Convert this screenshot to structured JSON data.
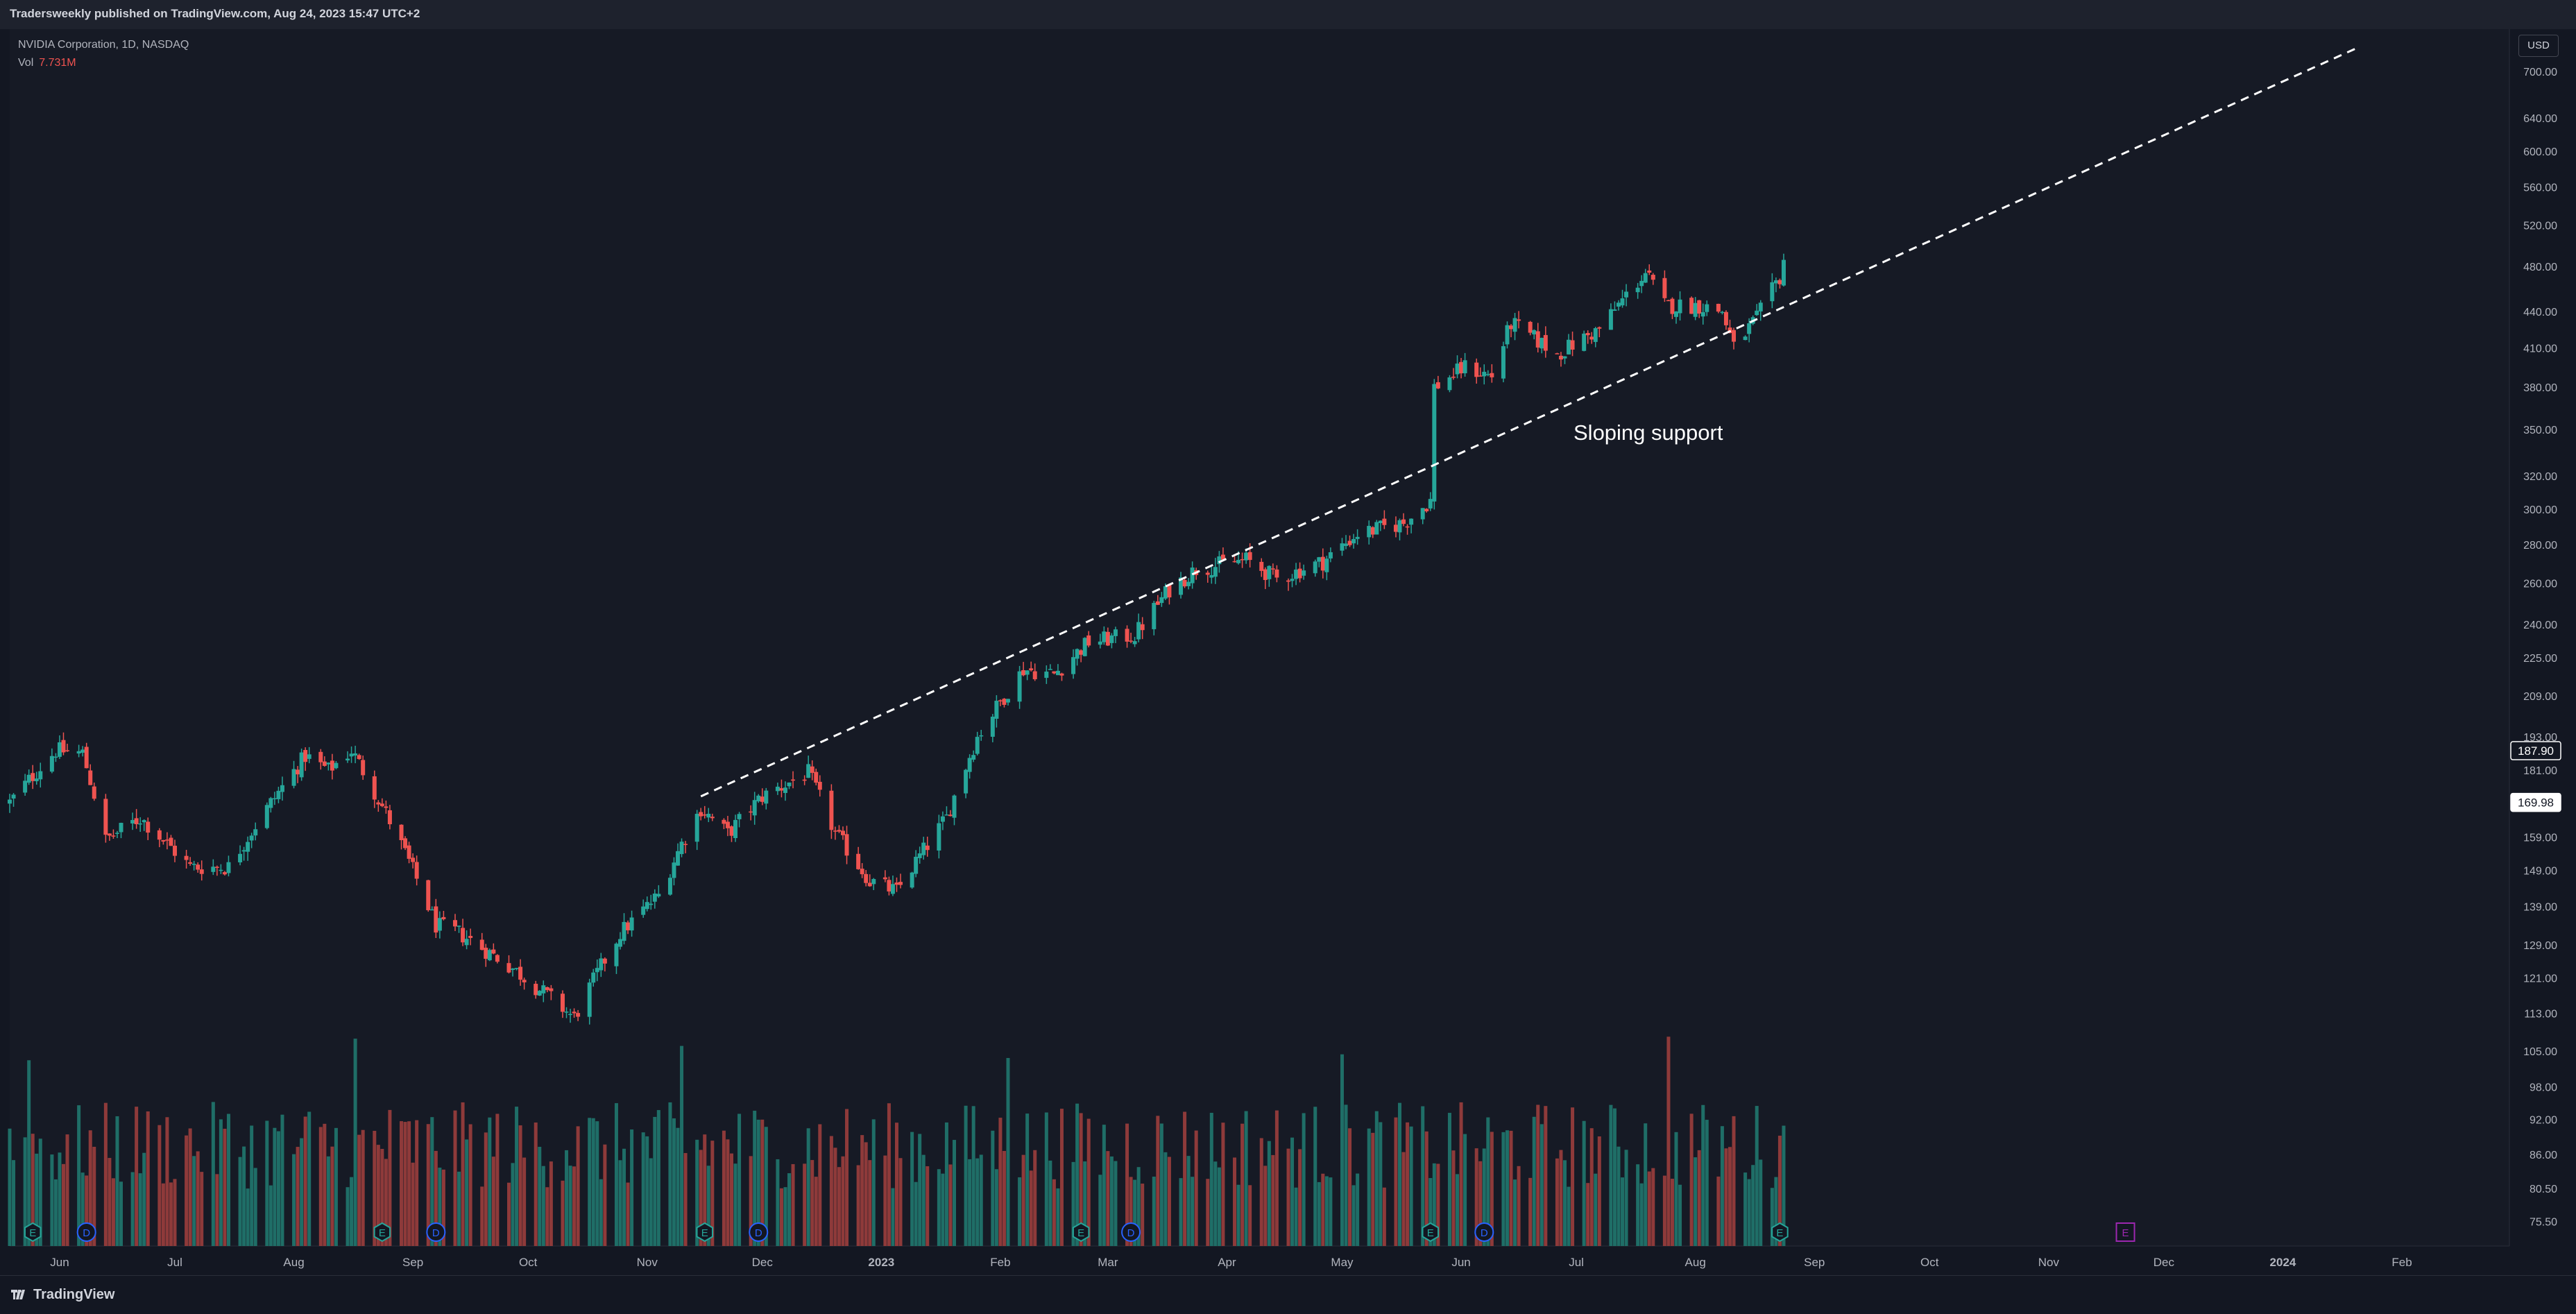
{
  "header": {
    "publish_text": "Tradersweekly published on TradingView.com, Aug 24, 2023 15:47 UTC+2"
  },
  "legend": {
    "symbol": "NVIDIA Corporation, 1D, NASDAQ",
    "vol_label": "Vol",
    "vol_value": "7.731M"
  },
  "currency_button": "USD",
  "footer": {
    "brand": "TradingView"
  },
  "colors": {
    "up": "#26a69a",
    "down": "#ef5350",
    "up_vol": "#1f6e67",
    "down_vol": "#8e3a3a",
    "background": "#131722",
    "line": "#ffffff",
    "event_e": "#26a69a",
    "event_d": "#2962ff",
    "event_future": "#9c27b0"
  },
  "chart_data": {
    "type": "candlestick",
    "title": "NVIDIA Corporation, 1D, NASDAQ",
    "y_scale": "log",
    "ylim": [
      72,
      760
    ],
    "x_range": [
      "2022-05-19",
      "2024-02-29"
    ],
    "x_ticks": [
      {
        "date": "2022-06-01",
        "label": "Jun"
      },
      {
        "date": "2022-07-01",
        "label": "Jul"
      },
      {
        "date": "2022-08-01",
        "label": "Aug"
      },
      {
        "date": "2022-09-01",
        "label": "Sep"
      },
      {
        "date": "2022-10-01",
        "label": "Oct"
      },
      {
        "date": "2022-11-01",
        "label": "Nov"
      },
      {
        "date": "2022-12-01",
        "label": "Dec"
      },
      {
        "date": "2023-01-01",
        "label": "2023"
      },
      {
        "date": "2023-02-01",
        "label": "Feb"
      },
      {
        "date": "2023-03-01",
        "label": "Mar"
      },
      {
        "date": "2023-04-01",
        "label": "Apr"
      },
      {
        "date": "2023-05-01",
        "label": "May"
      },
      {
        "date": "2023-06-01",
        "label": "Jun"
      },
      {
        "date": "2023-07-01",
        "label": "Jul"
      },
      {
        "date": "2023-08-01",
        "label": "Aug"
      },
      {
        "date": "2023-09-01",
        "label": "Sep"
      },
      {
        "date": "2023-10-01",
        "label": "Oct"
      },
      {
        "date": "2023-11-01",
        "label": "Nov"
      },
      {
        "date": "2023-12-01",
        "label": "Dec"
      },
      {
        "date": "2024-01-01",
        "label": "2024"
      },
      {
        "date": "2024-02-01",
        "label": "Feb"
      }
    ],
    "y_ticks": [
      "700.00",
      "640.00",
      "600.00",
      "560.00",
      "520.00",
      "480.00",
      "440.00",
      "410.00",
      "380.00",
      "350.00",
      "320.00",
      "300.00",
      "280.00",
      "260.00",
      "240.00",
      "225.00",
      "209.00",
      "193.00",
      "181.00",
      "159.00",
      "149.00",
      "139.00",
      "129.00",
      "121.00",
      "113.00",
      "105.00",
      "98.00",
      "92.00",
      "86.00",
      "80.50",
      "75.50"
    ],
    "price_labels": [
      {
        "value": 187.9,
        "text": "187.90",
        "style": "outline"
      },
      {
        "value": 169.98,
        "text": "169.98",
        "style": "filled"
      }
    ],
    "anchors": [
      [
        "2022-05-19",
        170
      ],
      [
        "2022-05-31",
        188
      ],
      [
        "2022-06-07",
        187
      ],
      [
        "2022-06-13",
        158
      ],
      [
        "2022-06-22",
        165
      ],
      [
        "2022-07-05",
        150
      ],
      [
        "2022-07-15",
        150
      ],
      [
        "2022-08-04",
        186
      ],
      [
        "2022-08-10",
        181
      ],
      [
        "2022-08-16",
        188
      ],
      [
        "2022-08-26",
        164
      ],
      [
        "2022-09-07",
        134
      ],
      [
        "2022-09-13",
        132
      ],
      [
        "2022-09-26",
        124
      ],
      [
        "2022-10-13",
        112
      ],
      [
        "2022-10-25",
        132
      ],
      [
        "2022-11-04",
        142
      ],
      [
        "2022-11-10",
        157
      ],
      [
        "2022-11-15",
        168
      ],
      [
        "2022-11-22",
        160
      ],
      [
        "2022-12-01",
        172
      ],
      [
        "2022-12-13",
        180
      ],
      [
        "2022-12-20",
        160
      ],
      [
        "2022-12-29",
        146
      ],
      [
        "2023-01-05",
        143
      ],
      [
        "2023-01-18",
        165
      ],
      [
        "2023-01-26",
        193
      ],
      [
        "2023-02-07",
        220
      ],
      [
        "2023-02-15",
        218
      ],
      [
        "2023-02-24",
        232
      ],
      [
        "2023-03-08",
        235
      ],
      [
        "2023-03-17",
        257
      ],
      [
        "2023-03-24",
        267
      ],
      [
        "2023-04-06",
        272
      ],
      [
        "2023-04-14",
        262
      ],
      [
        "2023-04-26",
        271
      ],
      [
        "2023-05-05",
        286
      ],
      [
        "2023-05-17",
        292
      ],
      [
        "2023-05-24",
        305
      ],
      [
        "2023-05-25",
        380
      ],
      [
        "2023-06-02",
        395
      ],
      [
        "2023-06-09",
        388
      ],
      [
        "2023-06-14",
        430
      ],
      [
        "2023-06-26",
        405
      ],
      [
        "2023-07-07",
        425
      ],
      [
        "2023-07-19",
        474
      ],
      [
        "2023-07-24",
        445
      ],
      [
        "2023-08-02",
        445
      ],
      [
        "2023-08-08",
        440
      ],
      [
        "2023-08-11",
        410
      ],
      [
        "2023-08-17",
        434
      ],
      [
        "2023-08-23",
        470
      ],
      [
        "2023-08-24",
        487
      ]
    ],
    "volume_millions_range": [
      24,
      90
    ],
    "trendline": {
      "label": "Sloping support",
      "points": [
        [
          "2022-11-15",
          172
        ],
        [
          "2024-01-20",
          732
        ]
      ],
      "style": "dashed"
    },
    "events": [
      {
        "date": "2022-05-25",
        "kind": "E"
      },
      {
        "date": "2022-06-08",
        "kind": "D"
      },
      {
        "date": "2022-08-24",
        "kind": "E"
      },
      {
        "date": "2022-09-07",
        "kind": "D"
      },
      {
        "date": "2022-11-16",
        "kind": "E"
      },
      {
        "date": "2022-11-30",
        "kind": "D"
      },
      {
        "date": "2023-02-22",
        "kind": "E"
      },
      {
        "date": "2023-03-07",
        "kind": "D"
      },
      {
        "date": "2023-05-24",
        "kind": "E"
      },
      {
        "date": "2023-06-07",
        "kind": "D"
      },
      {
        "date": "2023-08-23",
        "kind": "E"
      },
      {
        "date": "2023-11-21",
        "kind": "E",
        "future": true
      }
    ]
  }
}
